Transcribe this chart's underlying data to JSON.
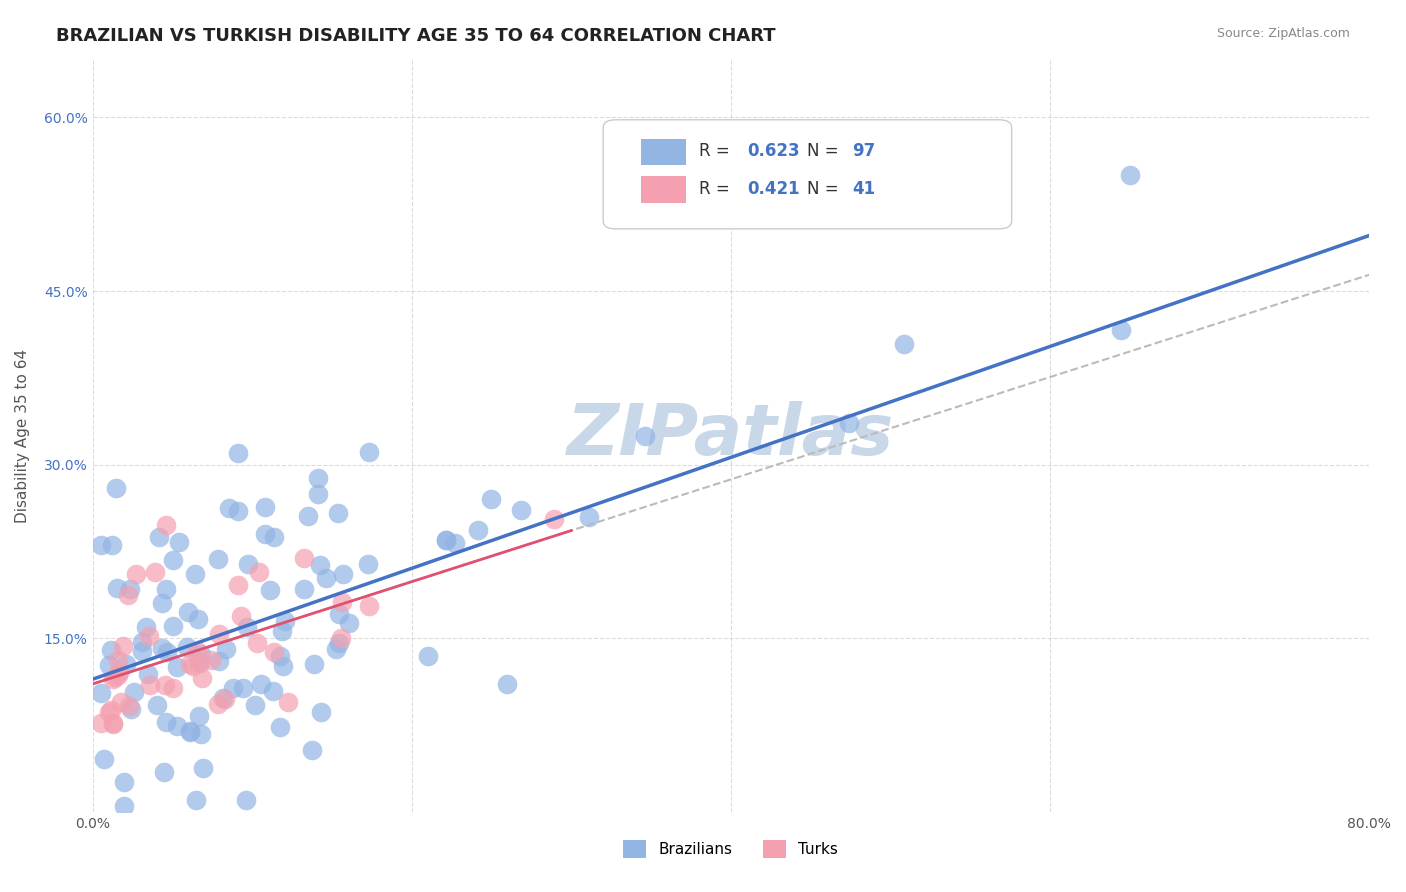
{
  "title": "BRAZILIAN VS TURKISH DISABILITY AGE 35 TO 64 CORRELATION CHART",
  "source": "Source: ZipAtlas.com",
  "ylabel": "Disability Age 35 to 64",
  "xlim": [
    0.0,
    0.8
  ],
  "ylim": [
    0.0,
    0.65
  ],
  "xticks": [
    0.0,
    0.2,
    0.4,
    0.6,
    0.8
  ],
  "xticklabels": [
    "0.0%",
    "",
    "",
    "",
    "80.0%"
  ],
  "yticks": [
    0.0,
    0.15,
    0.3,
    0.45,
    0.6
  ],
  "yticklabels": [
    "",
    "15.0%",
    "30.0%",
    "45.0%",
    "60.0%"
  ],
  "brazilian_R": 0.623,
  "brazilian_N": 97,
  "turkish_R": 0.421,
  "turkish_N": 41,
  "brazilian_color": "#92b4e3",
  "turkish_color": "#f4a0b0",
  "brazilian_line_color": "#4472c4",
  "turkish_line_color": "#e05070",
  "dashed_line_color": "#bbbbbb",
  "watermark": "ZIPatlas",
  "watermark_color": "#c8d8e8",
  "background_color": "#ffffff",
  "grid_color": "#cccccc",
  "legend_R_color": "#4472c4",
  "title_fontsize": 13,
  "axis_label_fontsize": 11,
  "tick_fontsize": 10,
  "legend_fontsize": 12
}
